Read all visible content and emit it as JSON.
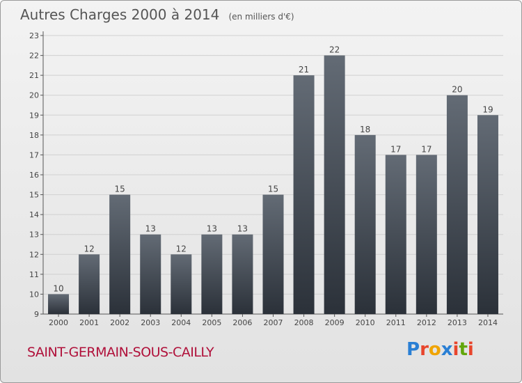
{
  "header": {
    "title": "Autres Charges 2000 à 2014",
    "unit": "(en milliers d'€)"
  },
  "footer": {
    "town": "SAINT-GERMAIN-SOUS-CAILLY",
    "logo": "Proxiti",
    "logo_colors": [
      "#2a7fd4",
      "#e8452c",
      "#f0a400",
      "#2a7fd4",
      "#e8452c",
      "#62a60a",
      "#e8452c"
    ]
  },
  "colors": {
    "bar_top": "#636b75",
    "bar_bottom": "#2b3139",
    "axis": "#555555",
    "grid": "#d0d0d0"
  },
  "chart_data": {
    "type": "bar",
    "title": "Autres Charges 2000 à 2014",
    "subtitle": "(en milliers d'€)",
    "categories": [
      "2000",
      "2001",
      "2002",
      "2003",
      "2004",
      "2005",
      "2006",
      "2007",
      "2008",
      "2009",
      "2010",
      "2011",
      "2012",
      "2013",
      "2014"
    ],
    "values": [
      10,
      12,
      15,
      13,
      12,
      13,
      13,
      15,
      21,
      22,
      18,
      17,
      17,
      20,
      19
    ],
    "ylim": [
      9,
      23
    ],
    "yticks": [
      9,
      10,
      11,
      12,
      13,
      14,
      15,
      16,
      17,
      18,
      19,
      20,
      21,
      22,
      23
    ],
    "grid": true
  }
}
